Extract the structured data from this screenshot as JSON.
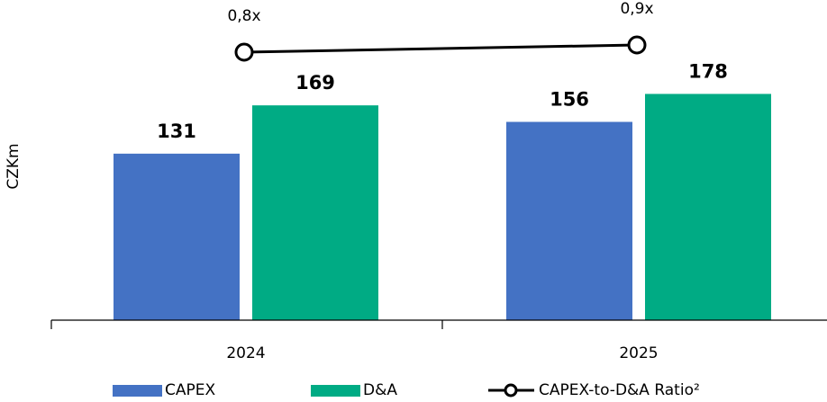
{
  "chart_data": {
    "type": "bar",
    "categories": [
      "2024",
      "2025"
    ],
    "ylabel": "CZKm",
    "ylim": [
      0,
      200
    ],
    "grid": false,
    "legend_placement": "bottom",
    "series": [
      {
        "name": "CAPEX",
        "values": [
          131,
          156
        ],
        "color": "#4472C4"
      },
      {
        "name": "D&A",
        "values": [
          169,
          178
        ],
        "color": "#00AB84"
      }
    ],
    "ratio_series": {
      "name": "CAPEX-to-D&A Ratio²",
      "values": [
        0.8,
        0.9
      ],
      "labels": [
        "0,8x",
        "0,9x"
      ],
      "color": "#000000"
    },
    "value_labels": [
      [
        "131",
        "156"
      ],
      [
        "169",
        "178"
      ]
    ]
  }
}
